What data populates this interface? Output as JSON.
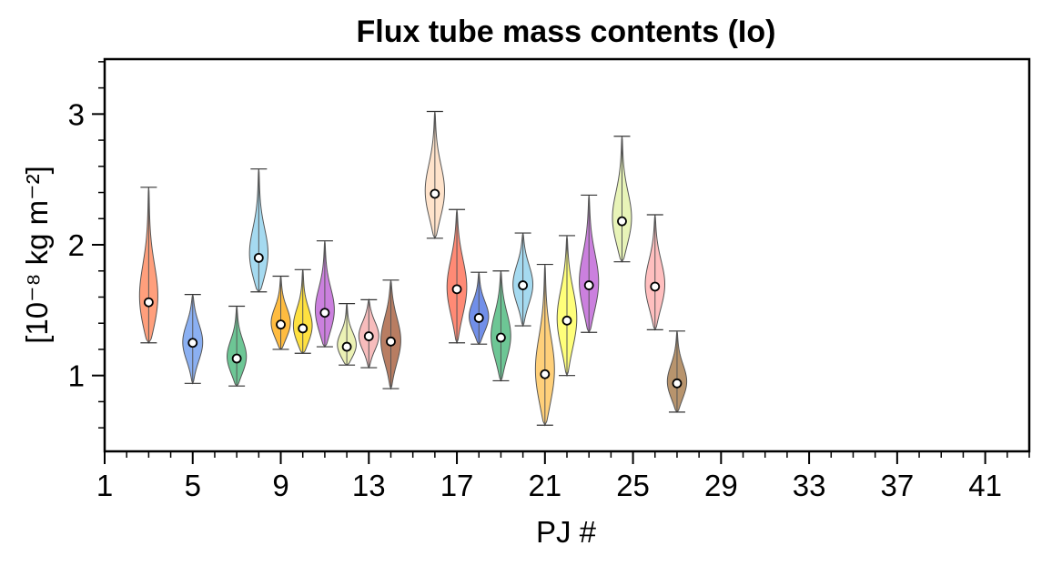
{
  "chart_data": {
    "type": "violin",
    "title": "Flux tube mass contents (Io)",
    "xlabel": "PJ #",
    "ylabel": "[10⁻⁸ kg m⁻²]",
    "xlim": [
      1,
      43
    ],
    "ylim": [
      0.42,
      3.42
    ],
    "xticks": [
      1,
      5,
      9,
      13,
      17,
      21,
      25,
      29,
      33,
      37,
      41
    ],
    "xtick_labels": [
      "1",
      "5",
      "9",
      "13",
      "17",
      "21",
      "25",
      "29",
      "33",
      "37",
      "41"
    ],
    "yticks": [
      1,
      2,
      3
    ],
    "ytick_labels": [
      "1",
      "2",
      "3"
    ],
    "grid": false,
    "violins": [
      {
        "pj": 3,
        "min": 1.25,
        "max": 2.44,
        "median": 1.56,
        "color": "#ff7f50"
      },
      {
        "pj": 5,
        "min": 0.94,
        "max": 1.62,
        "median": 1.25,
        "color": "#6495ed"
      },
      {
        "pj": 7,
        "min": 0.92,
        "max": 1.53,
        "median": 1.13,
        "color": "#3cb371"
      },
      {
        "pj": 8,
        "min": 1.64,
        "max": 2.58,
        "median": 1.9,
        "color": "#87ceeb"
      },
      {
        "pj": 9,
        "min": 1.2,
        "max": 1.76,
        "median": 1.39,
        "color": "#ffa500"
      },
      {
        "pj": 10,
        "min": 1.17,
        "max": 1.81,
        "median": 1.36,
        "color": "#ffd700"
      },
      {
        "pj": 11,
        "min": 1.22,
        "max": 2.03,
        "median": 1.48,
        "color": "#ba55d3"
      },
      {
        "pj": 12,
        "min": 1.08,
        "max": 1.55,
        "median": 1.22,
        "color": "#e6ee9c"
      },
      {
        "pj": 13,
        "min": 1.06,
        "max": 1.58,
        "median": 1.3,
        "color": "#f4a6a6"
      },
      {
        "pj": 14,
        "min": 0.9,
        "max": 1.73,
        "median": 1.26,
        "color": "#a0522d"
      },
      {
        "pj": 16,
        "min": 2.05,
        "max": 3.02,
        "median": 2.39,
        "color": "#ffdab9"
      },
      {
        "pj": 17,
        "min": 1.25,
        "max": 2.27,
        "median": 1.66,
        "color": "#ff6347"
      },
      {
        "pj": 18,
        "min": 1.24,
        "max": 1.79,
        "median": 1.44,
        "color": "#4169e1"
      },
      {
        "pj": 19,
        "min": 0.96,
        "max": 1.8,
        "median": 1.29,
        "color": "#3cb371"
      },
      {
        "pj": 20,
        "min": 1.38,
        "max": 2.09,
        "median": 1.69,
        "color": "#87ceeb"
      },
      {
        "pj": 21,
        "min": 0.62,
        "max": 1.85,
        "median": 1.01,
        "color": "#ffc04d"
      },
      {
        "pj": 22,
        "min": 1.0,
        "max": 2.07,
        "median": 1.42,
        "color": "#ffff4d"
      },
      {
        "pj": 23,
        "min": 1.33,
        "max": 2.38,
        "median": 1.69,
        "color": "#ba55d3"
      },
      {
        "pj": 24.5,
        "min": 1.87,
        "max": 2.83,
        "median": 2.18,
        "color": "#e0f0a0"
      },
      {
        "pj": 26,
        "min": 1.35,
        "max": 2.23,
        "median": 1.68,
        "color": "#ffaaaa"
      },
      {
        "pj": 27,
        "min": 0.72,
        "max": 1.34,
        "median": 0.94,
        "color": "#a0703c"
      }
    ]
  }
}
